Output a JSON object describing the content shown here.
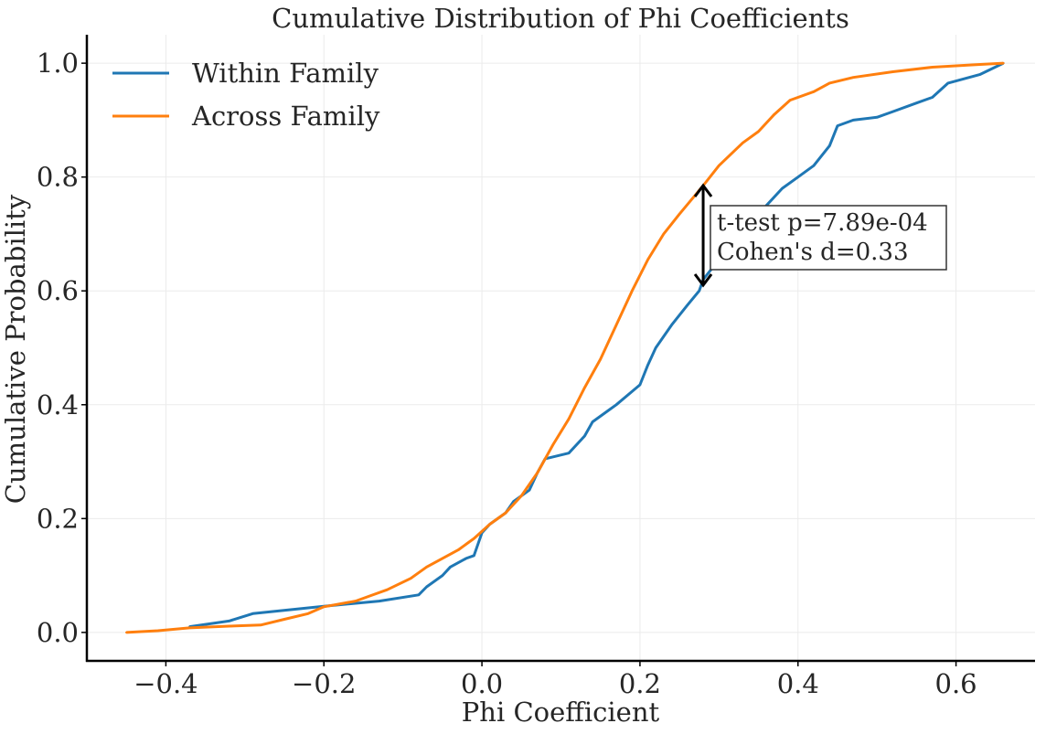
{
  "chart_data": {
    "type": "line",
    "title": "Cumulative Distribution of Phi Coefficients",
    "xlabel": "Phi Coefficient",
    "ylabel": "Cumulative Probability",
    "xlim": [
      -0.5,
      0.7
    ],
    "ylim": [
      -0.05,
      1.05
    ],
    "x_ticks": [
      -0.4,
      -0.2,
      0.0,
      0.2,
      0.4,
      0.6
    ],
    "x_tick_labels": [
      "−0.4",
      "−0.2",
      "0.0",
      "0.2",
      "0.4",
      "0.6"
    ],
    "y_ticks": [
      0.0,
      0.2,
      0.4,
      0.6,
      0.8,
      1.0
    ],
    "y_tick_labels": [
      "0.0",
      "0.2",
      "0.4",
      "0.6",
      "0.8",
      "1.0"
    ],
    "grid": true,
    "legend_position": "top-left",
    "series": [
      {
        "name": "Within Family",
        "color": "#1f77b4",
        "points": [
          [
            -0.37,
            0.01
          ],
          [
            -0.32,
            0.02
          ],
          [
            -0.29,
            0.033
          ],
          [
            -0.2,
            0.046
          ],
          [
            -0.13,
            0.055
          ],
          [
            -0.08,
            0.066
          ],
          [
            -0.07,
            0.08
          ],
          [
            -0.05,
            0.1
          ],
          [
            -0.04,
            0.115
          ],
          [
            -0.02,
            0.13
          ],
          [
            -0.01,
            0.135
          ],
          [
            0.0,
            0.175
          ],
          [
            0.01,
            0.19
          ],
          [
            0.03,
            0.21
          ],
          [
            0.04,
            0.23
          ],
          [
            0.06,
            0.25
          ],
          [
            0.07,
            0.28
          ],
          [
            0.08,
            0.305
          ],
          [
            0.11,
            0.315
          ],
          [
            0.13,
            0.345
          ],
          [
            0.14,
            0.37
          ],
          [
            0.16,
            0.39
          ],
          [
            0.17,
            0.4
          ],
          [
            0.2,
            0.435
          ],
          [
            0.21,
            0.47
          ],
          [
            0.22,
            0.5
          ],
          [
            0.24,
            0.54
          ],
          [
            0.26,
            0.575
          ],
          [
            0.275,
            0.6
          ],
          [
            0.28,
            0.62
          ],
          [
            0.3,
            0.655
          ],
          [
            0.33,
            0.7
          ],
          [
            0.36,
            0.75
          ],
          [
            0.38,
            0.78
          ],
          [
            0.4,
            0.8
          ],
          [
            0.42,
            0.82
          ],
          [
            0.44,
            0.855
          ],
          [
            0.45,
            0.89
          ],
          [
            0.47,
            0.9
          ],
          [
            0.5,
            0.905
          ],
          [
            0.52,
            0.915
          ],
          [
            0.55,
            0.93
          ],
          [
            0.57,
            0.94
          ],
          [
            0.59,
            0.965
          ],
          [
            0.63,
            0.98
          ],
          [
            0.66,
            1.0
          ]
        ]
      },
      {
        "name": "Across Family",
        "color": "#ff7f0e",
        "points": [
          [
            -0.45,
            0.0
          ],
          [
            -0.41,
            0.003
          ],
          [
            -0.37,
            0.008
          ],
          [
            -0.32,
            0.011
          ],
          [
            -0.28,
            0.013
          ],
          [
            -0.25,
            0.023
          ],
          [
            -0.22,
            0.033
          ],
          [
            -0.2,
            0.045
          ],
          [
            -0.16,
            0.055
          ],
          [
            -0.14,
            0.065
          ],
          [
            -0.12,
            0.075
          ],
          [
            -0.09,
            0.095
          ],
          [
            -0.07,
            0.115
          ],
          [
            -0.05,
            0.13
          ],
          [
            -0.03,
            0.145
          ],
          [
            -0.01,
            0.165
          ],
          [
            0.01,
            0.19
          ],
          [
            0.03,
            0.21
          ],
          [
            0.05,
            0.24
          ],
          [
            0.07,
            0.28
          ],
          [
            0.09,
            0.33
          ],
          [
            0.11,
            0.375
          ],
          [
            0.13,
            0.43
          ],
          [
            0.15,
            0.48
          ],
          [
            0.17,
            0.54
          ],
          [
            0.19,
            0.6
          ],
          [
            0.21,
            0.655
          ],
          [
            0.23,
            0.7
          ],
          [
            0.25,
            0.735
          ],
          [
            0.28,
            0.785
          ],
          [
            0.3,
            0.82
          ],
          [
            0.33,
            0.86
          ],
          [
            0.35,
            0.88
          ],
          [
            0.37,
            0.91
          ],
          [
            0.39,
            0.935
          ],
          [
            0.42,
            0.95
          ],
          [
            0.44,
            0.965
          ],
          [
            0.47,
            0.975
          ],
          [
            0.52,
            0.985
          ],
          [
            0.57,
            0.993
          ],
          [
            0.62,
            0.997
          ],
          [
            0.66,
            1.0
          ]
        ]
      }
    ],
    "annotation": {
      "arrow_x": 0.28,
      "arrow_y_from": 0.61,
      "arrow_y_to": 0.785,
      "lines": [
        "t-test p=7.89e-04",
        "Cohen's d=0.33"
      ]
    }
  }
}
